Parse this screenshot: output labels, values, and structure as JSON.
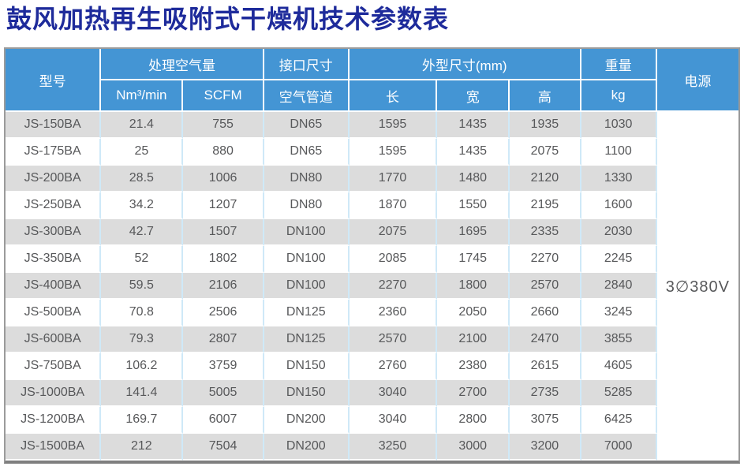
{
  "page": {
    "title": "鼓风加热再生吸附式干燥机技术参数表"
  },
  "table": {
    "header": {
      "model": "型号",
      "air_flow_group": "处理空气量",
      "air_flow_units": [
        "Nm³/min",
        "SCFM"
      ],
      "interface_group": "接口尺寸",
      "interface_sub": "空气管道",
      "dimensions_group": "外型尺寸(mm)",
      "dimensions_sub": [
        "长",
        "宽",
        "高"
      ],
      "weight_group": "重量",
      "weight_unit": "kg",
      "power": "电源"
    },
    "power_value": "3∅380V",
    "rows": [
      {
        "model": "JS-150BA",
        "nm3_min": "21.4",
        "scfm": "755",
        "pipe": "DN65",
        "length": "1595",
        "width": "1435",
        "height": "1935",
        "weight": "1030"
      },
      {
        "model": "JS-175BA",
        "nm3_min": "25",
        "scfm": "880",
        "pipe": "DN65",
        "length": "1595",
        "width": "1435",
        "height": "2075",
        "weight": "1100"
      },
      {
        "model": "JS-200BA",
        "nm3_min": "28.5",
        "scfm": "1006",
        "pipe": "DN80",
        "length": "1770",
        "width": "1480",
        "height": "2120",
        "weight": "1330"
      },
      {
        "model": "JS-250BA",
        "nm3_min": "34.2",
        "scfm": "1207",
        "pipe": "DN80",
        "length": "1870",
        "width": "1550",
        "height": "2195",
        "weight": "1600"
      },
      {
        "model": "JS-300BA",
        "nm3_min": "42.7",
        "scfm": "1507",
        "pipe": "DN100",
        "length": "2075",
        "width": "1695",
        "height": "2335",
        "weight": "2030"
      },
      {
        "model": "JS-350BA",
        "nm3_min": "52",
        "scfm": "1802",
        "pipe": "DN100",
        "length": "2085",
        "width": "1745",
        "height": "2270",
        "weight": "2245"
      },
      {
        "model": "JS-400BA",
        "nm3_min": "59.5",
        "scfm": "2106",
        "pipe": "DN100",
        "length": "2270",
        "width": "1800",
        "height": "2570",
        "weight": "2840"
      },
      {
        "model": "JS-500BA",
        "nm3_min": "70.8",
        "scfm": "2506",
        "pipe": "DN125",
        "length": "2360",
        "width": "2050",
        "height": "2660",
        "weight": "3245"
      },
      {
        "model": "JS-600BA",
        "nm3_min": "79.3",
        "scfm": "2807",
        "pipe": "DN125",
        "length": "2570",
        "width": "2100",
        "height": "2470",
        "weight": "3855"
      },
      {
        "model": "JS-750BA",
        "nm3_min": "106.2",
        "scfm": "3759",
        "pipe": "DN150",
        "length": "2760",
        "width": "2380",
        "height": "2615",
        "weight": "4605"
      },
      {
        "model": "JS-1000BA",
        "nm3_min": "141.4",
        "scfm": "5005",
        "pipe": "DN150",
        "length": "3040",
        "width": "2700",
        "height": "2735",
        "weight": "5285"
      },
      {
        "model": "JS-1200BA",
        "nm3_min": "169.7",
        "scfm": "6007",
        "pipe": "DN200",
        "length": "3040",
        "width": "2800",
        "height": "3075",
        "weight": "6425"
      },
      {
        "model": "JS-1500BA",
        "nm3_min": "212",
        "scfm": "7504",
        "pipe": "DN200",
        "length": "3250",
        "width": "3000",
        "height": "3200",
        "weight": "7000"
      }
    ]
  },
  "colors": {
    "title_color": "#1e2b9b",
    "header_bg": "#4495d4",
    "row_alt": "#dcdcdc",
    "body_text": "#57585a",
    "grid_blue": "#cfe9f8",
    "outer_border": "#9b9b9b",
    "bottom_border": "#7f7f7f"
  }
}
